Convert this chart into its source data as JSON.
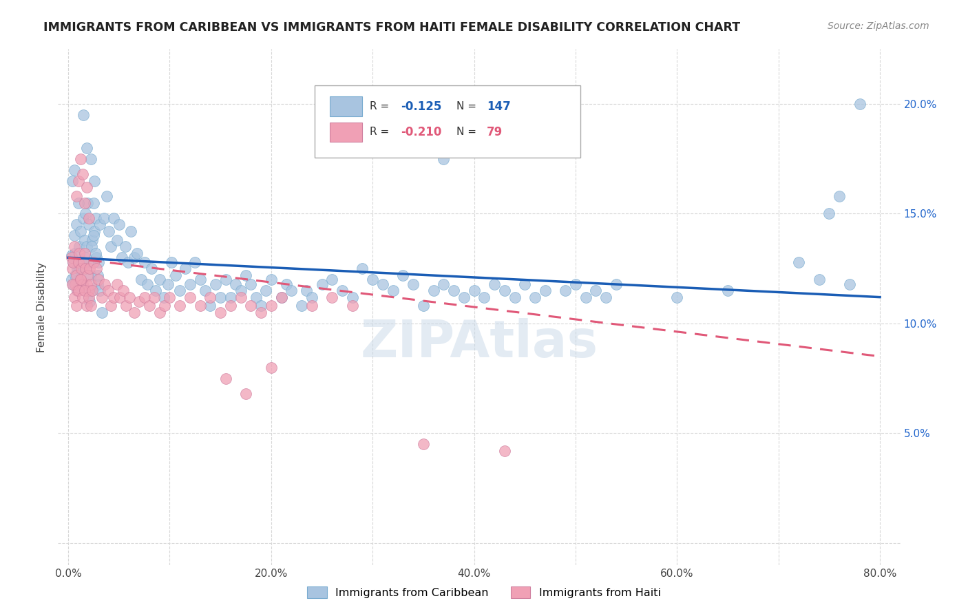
{
  "title": "IMMIGRANTS FROM CARIBBEAN VS IMMIGRANTS FROM HAITI FEMALE DISABILITY CORRELATION CHART",
  "source": "Source: ZipAtlas.com",
  "ylabel": "Female Disability",
  "xlim": [
    -0.01,
    0.82
  ],
  "ylim": [
    -0.01,
    0.225
  ],
  "caribbean_R": -0.125,
  "caribbean_N": 147,
  "haiti_R": -0.21,
  "haiti_N": 79,
  "caribbean_color": "#a8c4e0",
  "haiti_color": "#f0a0b5",
  "caribbean_line_color": "#1a5db5",
  "haiti_line_color": "#e05878",
  "watermark": "ZIPAtlas",
  "carib_line_x0": 0.0,
  "carib_line_y0": 0.13,
  "carib_line_x1": 0.8,
  "carib_line_y1": 0.112,
  "haiti_line_x0": 0.0,
  "haiti_line_y0": 0.13,
  "haiti_line_x1": 0.8,
  "haiti_line_y1": 0.085,
  "x_tick_positions": [
    0.0,
    0.1,
    0.2,
    0.3,
    0.4,
    0.5,
    0.6,
    0.7,
    0.8
  ],
  "x_tick_labels": [
    "0.0%",
    "",
    "20.0%",
    "",
    "40.0%",
    "",
    "60.0%",
    "",
    "80.0%"
  ],
  "y_tick_positions": [
    0.0,
    0.05,
    0.1,
    0.15,
    0.2
  ],
  "y_tick_labels_right": [
    "",
    "5.0%",
    "10.0%",
    "15.0%",
    "20.0%"
  ],
  "caribbean_scatter": [
    [
      0.003,
      0.131
    ],
    [
      0.005,
      0.128
    ],
    [
      0.006,
      0.14
    ],
    [
      0.007,
      0.132
    ],
    [
      0.008,
      0.145
    ],
    [
      0.009,
      0.125
    ],
    [
      0.01,
      0.12
    ],
    [
      0.011,
      0.135
    ],
    [
      0.012,
      0.142
    ],
    [
      0.013,
      0.128
    ],
    [
      0.014,
      0.118
    ],
    [
      0.015,
      0.148
    ],
    [
      0.016,
      0.138
    ],
    [
      0.017,
      0.15
    ],
    [
      0.018,
      0.135
    ],
    [
      0.019,
      0.155
    ],
    [
      0.02,
      0.145
    ],
    [
      0.021,
      0.128
    ],
    [
      0.022,
      0.122
    ],
    [
      0.023,
      0.115
    ],
    [
      0.024,
      0.138
    ],
    [
      0.025,
      0.155
    ],
    [
      0.026,
      0.142
    ],
    [
      0.027,
      0.148
    ],
    [
      0.028,
      0.13
    ],
    [
      0.029,
      0.118
    ],
    [
      0.03,
      0.128
    ],
    [
      0.031,
      0.145
    ],
    [
      0.003,
      0.12
    ],
    [
      0.005,
      0.118
    ],
    [
      0.007,
      0.122
    ],
    [
      0.009,
      0.115
    ],
    [
      0.011,
      0.125
    ],
    [
      0.013,
      0.118
    ],
    [
      0.015,
      0.125
    ],
    [
      0.017,
      0.13
    ],
    [
      0.019,
      0.115
    ],
    [
      0.021,
      0.11
    ],
    [
      0.023,
      0.135
    ],
    [
      0.025,
      0.14
    ],
    [
      0.027,
      0.132
    ],
    [
      0.029,
      0.122
    ],
    [
      0.031,
      0.115
    ],
    [
      0.033,
      0.105
    ],
    [
      0.004,
      0.165
    ],
    [
      0.006,
      0.17
    ],
    [
      0.01,
      0.155
    ],
    [
      0.015,
      0.195
    ],
    [
      0.018,
      0.18
    ],
    [
      0.022,
      0.175
    ],
    [
      0.026,
      0.165
    ],
    [
      0.035,
      0.148
    ],
    [
      0.038,
      0.158
    ],
    [
      0.04,
      0.142
    ],
    [
      0.042,
      0.135
    ],
    [
      0.045,
      0.148
    ],
    [
      0.048,
      0.138
    ],
    [
      0.05,
      0.145
    ],
    [
      0.053,
      0.13
    ],
    [
      0.056,
      0.135
    ],
    [
      0.059,
      0.128
    ],
    [
      0.062,
      0.142
    ],
    [
      0.065,
      0.13
    ],
    [
      0.068,
      0.132
    ],
    [
      0.072,
      0.12
    ],
    [
      0.075,
      0.128
    ],
    [
      0.078,
      0.118
    ],
    [
      0.082,
      0.125
    ],
    [
      0.086,
      0.115
    ],
    [
      0.09,
      0.12
    ],
    [
      0.094,
      0.112
    ],
    [
      0.098,
      0.118
    ],
    [
      0.102,
      0.128
    ],
    [
      0.106,
      0.122
    ],
    [
      0.11,
      0.115
    ],
    [
      0.115,
      0.125
    ],
    [
      0.12,
      0.118
    ],
    [
      0.125,
      0.128
    ],
    [
      0.13,
      0.12
    ],
    [
      0.135,
      0.115
    ],
    [
      0.14,
      0.108
    ],
    [
      0.145,
      0.118
    ],
    [
      0.15,
      0.112
    ],
    [
      0.155,
      0.12
    ],
    [
      0.16,
      0.112
    ],
    [
      0.165,
      0.118
    ],
    [
      0.17,
      0.115
    ],
    [
      0.175,
      0.122
    ],
    [
      0.18,
      0.118
    ],
    [
      0.185,
      0.112
    ],
    [
      0.19,
      0.108
    ],
    [
      0.195,
      0.115
    ],
    [
      0.2,
      0.12
    ],
    [
      0.21,
      0.112
    ],
    [
      0.215,
      0.118
    ],
    [
      0.22,
      0.115
    ],
    [
      0.23,
      0.108
    ],
    [
      0.235,
      0.115
    ],
    [
      0.24,
      0.112
    ],
    [
      0.25,
      0.118
    ],
    [
      0.26,
      0.12
    ],
    [
      0.27,
      0.115
    ],
    [
      0.28,
      0.112
    ],
    [
      0.29,
      0.125
    ],
    [
      0.3,
      0.12
    ],
    [
      0.31,
      0.118
    ],
    [
      0.32,
      0.115
    ],
    [
      0.33,
      0.122
    ],
    [
      0.34,
      0.118
    ],
    [
      0.35,
      0.108
    ],
    [
      0.36,
      0.115
    ],
    [
      0.37,
      0.118
    ],
    [
      0.38,
      0.115
    ],
    [
      0.39,
      0.112
    ],
    [
      0.4,
      0.115
    ],
    [
      0.41,
      0.112
    ],
    [
      0.42,
      0.118
    ],
    [
      0.43,
      0.115
    ],
    [
      0.44,
      0.112
    ],
    [
      0.45,
      0.118
    ],
    [
      0.46,
      0.112
    ],
    [
      0.47,
      0.115
    ],
    [
      0.33,
      0.178
    ],
    [
      0.35,
      0.182
    ],
    [
      0.37,
      0.175
    ],
    [
      0.49,
      0.115
    ],
    [
      0.5,
      0.118
    ],
    [
      0.51,
      0.112
    ],
    [
      0.52,
      0.115
    ],
    [
      0.53,
      0.112
    ],
    [
      0.54,
      0.118
    ],
    [
      0.6,
      0.112
    ],
    [
      0.65,
      0.115
    ],
    [
      0.72,
      0.128
    ],
    [
      0.74,
      0.12
    ],
    [
      0.75,
      0.15
    ],
    [
      0.76,
      0.158
    ],
    [
      0.77,
      0.118
    ],
    [
      0.78,
      0.2
    ]
  ],
  "haiti_scatter": [
    [
      0.003,
      0.13
    ],
    [
      0.004,
      0.125
    ],
    [
      0.005,
      0.128
    ],
    [
      0.006,
      0.135
    ],
    [
      0.007,
      0.118
    ],
    [
      0.008,
      0.122
    ],
    [
      0.009,
      0.115
    ],
    [
      0.01,
      0.128
    ],
    [
      0.011,
      0.132
    ],
    [
      0.012,
      0.12
    ],
    [
      0.013,
      0.125
    ],
    [
      0.014,
      0.118
    ],
    [
      0.015,
      0.128
    ],
    [
      0.016,
      0.132
    ],
    [
      0.017,
      0.125
    ],
    [
      0.018,
      0.118
    ],
    [
      0.019,
      0.122
    ],
    [
      0.02,
      0.115
    ],
    [
      0.021,
      0.125
    ],
    [
      0.022,
      0.118
    ],
    [
      0.004,
      0.118
    ],
    [
      0.006,
      0.112
    ],
    [
      0.008,
      0.108
    ],
    [
      0.01,
      0.115
    ],
    [
      0.012,
      0.12
    ],
    [
      0.014,
      0.112
    ],
    [
      0.016,
      0.115
    ],
    [
      0.018,
      0.108
    ],
    [
      0.02,
      0.112
    ],
    [
      0.022,
      0.108
    ],
    [
      0.024,
      0.115
    ],
    [
      0.008,
      0.158
    ],
    [
      0.01,
      0.165
    ],
    [
      0.012,
      0.175
    ],
    [
      0.014,
      0.168
    ],
    [
      0.016,
      0.155
    ],
    [
      0.018,
      0.162
    ],
    [
      0.02,
      0.148
    ],
    [
      0.025,
      0.128
    ],
    [
      0.028,
      0.125
    ],
    [
      0.03,
      0.12
    ],
    [
      0.033,
      0.112
    ],
    [
      0.036,
      0.118
    ],
    [
      0.039,
      0.115
    ],
    [
      0.042,
      0.108
    ],
    [
      0.045,
      0.112
    ],
    [
      0.048,
      0.118
    ],
    [
      0.051,
      0.112
    ],
    [
      0.054,
      0.115
    ],
    [
      0.057,
      0.108
    ],
    [
      0.06,
      0.112
    ],
    [
      0.065,
      0.105
    ],
    [
      0.07,
      0.11
    ],
    [
      0.075,
      0.112
    ],
    [
      0.08,
      0.108
    ],
    [
      0.085,
      0.112
    ],
    [
      0.09,
      0.105
    ],
    [
      0.095,
      0.108
    ],
    [
      0.1,
      0.112
    ],
    [
      0.11,
      0.108
    ],
    [
      0.12,
      0.112
    ],
    [
      0.13,
      0.108
    ],
    [
      0.14,
      0.112
    ],
    [
      0.15,
      0.105
    ],
    [
      0.16,
      0.108
    ],
    [
      0.17,
      0.112
    ],
    [
      0.18,
      0.108
    ],
    [
      0.19,
      0.105
    ],
    [
      0.2,
      0.108
    ],
    [
      0.21,
      0.112
    ],
    [
      0.24,
      0.108
    ],
    [
      0.26,
      0.112
    ],
    [
      0.28,
      0.108
    ],
    [
      0.155,
      0.075
    ],
    [
      0.175,
      0.068
    ],
    [
      0.2,
      0.08
    ],
    [
      0.35,
      0.045
    ],
    [
      0.43,
      0.042
    ]
  ]
}
